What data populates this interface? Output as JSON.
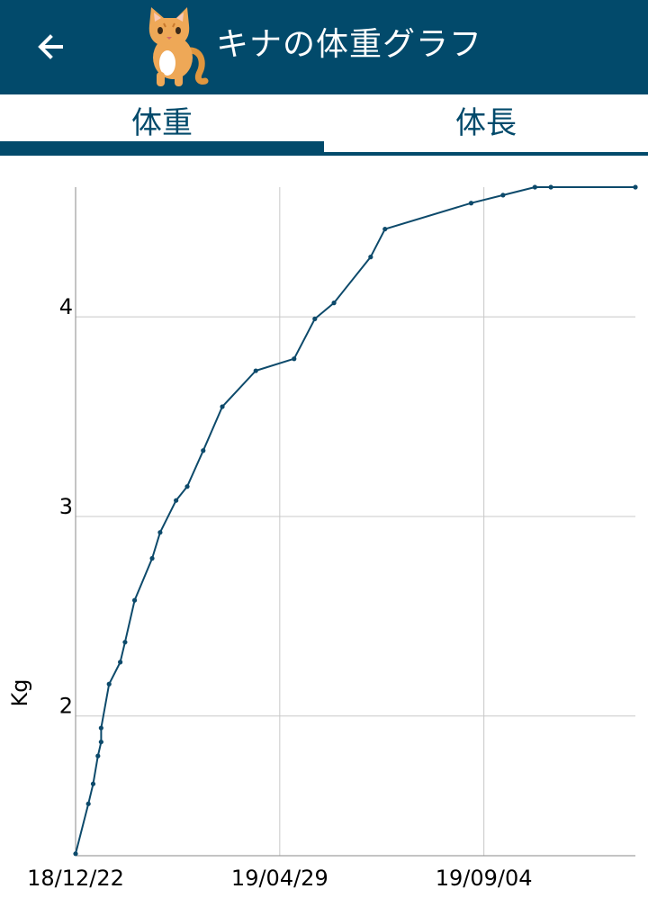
{
  "header": {
    "title": "キナの体重グラフ",
    "back_icon": "arrow-left-icon",
    "cat_icon": "cat-icon",
    "background": "#024a6b"
  },
  "tabs": [
    {
      "label": "体重",
      "selected": true
    },
    {
      "label": "体長",
      "selected": false
    }
  ],
  "chart_data": {
    "type": "line",
    "ylabel": "Kg",
    "ylim": [
      1.3,
      4.65
    ],
    "yticks": [
      2,
      3,
      4
    ],
    "ytick_labels": [
      "2",
      "3",
      "4"
    ],
    "xlim": [
      "2018-12-22",
      "2019-12-08"
    ],
    "xticks": [
      "2018-12-22",
      "2019-04-29",
      "2019-09-04"
    ],
    "xtick_labels": [
      "18/12/22",
      "19/04/29",
      "19/09/04"
    ],
    "grid": true,
    "line_color": "#0d4a6b",
    "x": [
      "2018-12-22",
      "2018-12-30",
      "2019-01-02",
      "2019-01-05",
      "2019-01-07",
      "2019-01-07",
      "2019-01-12",
      "2019-01-19",
      "2019-01-22",
      "2019-01-28",
      "2019-02-08",
      "2019-02-13",
      "2019-02-23",
      "2019-03-02",
      "2019-03-12",
      "2019-03-24",
      "2019-04-14",
      "2019-05-08",
      "2019-05-21",
      "2019-06-02",
      "2019-06-25",
      "2019-07-04",
      "2019-08-27",
      "2019-09-16",
      "2019-10-06",
      "2019-10-16",
      "2019-12-08"
    ],
    "y": [
      1.31,
      1.56,
      1.66,
      1.8,
      1.87,
      1.94,
      2.16,
      2.27,
      2.37,
      2.58,
      2.79,
      2.92,
      3.08,
      3.15,
      3.33,
      3.55,
      3.73,
      3.79,
      3.99,
      4.07,
      4.3,
      4.44,
      4.57,
      4.61,
      4.65,
      4.65,
      4.65
    ]
  }
}
